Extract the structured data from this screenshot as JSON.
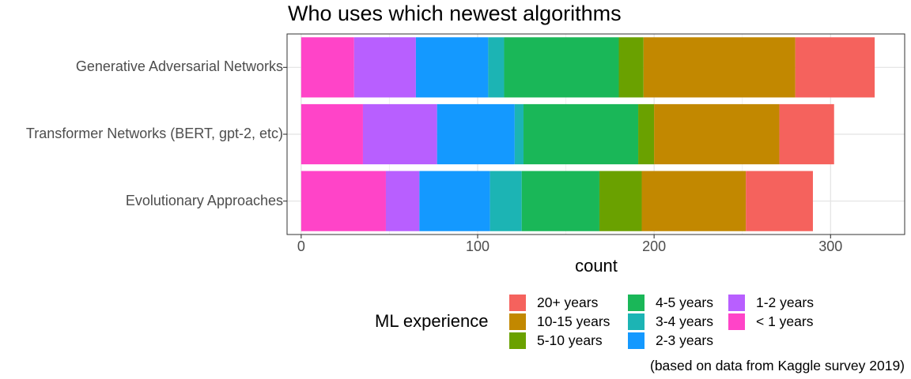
{
  "chart_data": {
    "type": "bar",
    "orientation": "horizontal",
    "stacked": true,
    "title": "Who uses which newest algorithms",
    "xlabel": "count",
    "ylabel": "",
    "xlim": [
      -8,
      342
    ],
    "xticks": [
      0,
      100,
      200,
      300
    ],
    "grid": true,
    "legend_position": "bottom",
    "legend_title": "ML experience",
    "caption": "(based on data from Kaggle survey 2019)",
    "categories": [
      "Generative Adversarial Networks",
      "Transformer Networks (BERT, gpt-2, etc)",
      "Evolutionary Approaches"
    ],
    "series": [
      {
        "name": "< 1 years",
        "color": "#FF44C8",
        "values": [
          30,
          35,
          48
        ]
      },
      {
        "name": "1-2 years",
        "color": "#B85FFF",
        "values": [
          35,
          42,
          19
        ]
      },
      {
        "name": "2-3 years",
        "color": "#1499FF",
        "values": [
          41,
          44,
          40
        ]
      },
      {
        "name": "3-4 years",
        "color": "#1CB4B4",
        "values": [
          9,
          5,
          18
        ]
      },
      {
        "name": "4-5 years",
        "color": "#1AB758",
        "values": [
          65,
          65,
          44
        ]
      },
      {
        "name": "5-10 years",
        "color": "#6AA100",
        "values": [
          14,
          9,
          24
        ]
      },
      {
        "name": "10-15 years",
        "color": "#C28800",
        "values": [
          86,
          71,
          59
        ]
      },
      {
        "name": "20+ years",
        "color": "#F5625D",
        "values": [
          45,
          31,
          38
        ]
      }
    ],
    "legend_order": [
      "20+ years",
      "10-15 years",
      "5-10 years",
      "4-5 years",
      "3-4 years",
      "2-3 years",
      "1-2 years",
      "< 1 years"
    ]
  }
}
